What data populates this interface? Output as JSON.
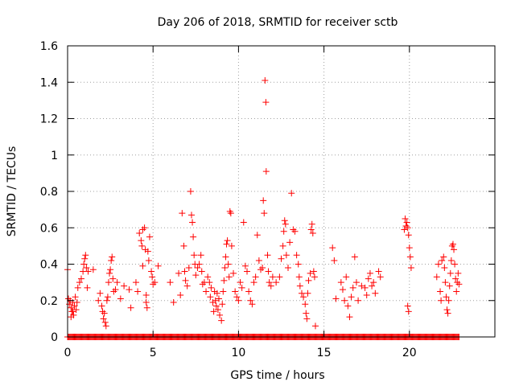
{
  "chart_data": {
    "type": "scatter",
    "title": "Day 206 of 2018, SRMTID for receiver sctb",
    "xlabel": "GPS time / hours",
    "ylabel": "SRMTID / TECUs",
    "xlim": [
      0,
      25
    ],
    "ylim": [
      0,
      1.6
    ],
    "xticks": [
      0,
      5,
      10,
      15,
      20
    ],
    "yticks": [
      0,
      0.2,
      0.4,
      0.6,
      0.8,
      1,
      1.2,
      1.4,
      1.6
    ],
    "ytick_labels": [
      "0",
      "0.2",
      "0.4",
      "0.6",
      "0.8",
      "1",
      "1.2",
      "1.4",
      "1.6"
    ],
    "grid": true,
    "marker": "+",
    "colors": {
      "points": "#ff0000",
      "grid": "#a0a0a0",
      "axes": "#000000"
    },
    "series": [
      {
        "name": "SRMTID",
        "points": [
          [
            0.0,
            0.37
          ],
          [
            0.05,
            0.21
          ],
          [
            0.1,
            0.18
          ],
          [
            0.15,
            0.2
          ],
          [
            0.2,
            0.16
          ],
          [
            0.25,
            0.14
          ],
          [
            0.3,
            0.19
          ],
          [
            0.35,
            0.12
          ],
          [
            0.4,
            0.17
          ],
          [
            0.45,
            0.22
          ],
          [
            0.5,
            0.15
          ],
          [
            0.55,
            0.19
          ],
          [
            0.6,
            0.27
          ],
          [
            0.7,
            0.3
          ],
          [
            0.8,
            0.32
          ],
          [
            0.9,
            0.36
          ],
          [
            0.95,
            0.4
          ],
          [
            1.0,
            0.43
          ],
          [
            1.05,
            0.45
          ],
          [
            1.1,
            0.38
          ],
          [
            1.15,
            0.27
          ],
          [
            1.2,
            0.36
          ],
          [
            1.5,
            0.37
          ],
          [
            0.2,
            0.11
          ],
          [
            0.3,
            0.14
          ],
          [
            1.8,
            0.2
          ],
          [
            1.9,
            0.24
          ],
          [
            2.0,
            0.17
          ],
          [
            2.05,
            0.14
          ],
          [
            2.1,
            0.1
          ],
          [
            2.15,
            0.13
          ],
          [
            2.2,
            0.08
          ],
          [
            2.25,
            0.06
          ],
          [
            2.3,
            0.2
          ],
          [
            2.35,
            0.22
          ],
          [
            2.4,
            0.3
          ],
          [
            2.45,
            0.35
          ],
          [
            2.5,
            0.37
          ],
          [
            2.55,
            0.42
          ],
          [
            2.6,
            0.44
          ],
          [
            2.65,
            0.32
          ],
          [
            2.7,
            0.25
          ],
          [
            2.8,
            0.26
          ],
          [
            2.9,
            0.3
          ],
          [
            3.3,
            0.28
          ],
          [
            3.1,
            0.21
          ],
          [
            3.6,
            0.26
          ],
          [
            3.7,
            0.16
          ],
          [
            4.0,
            0.3
          ],
          [
            4.1,
            0.25
          ],
          [
            4.2,
            0.57
          ],
          [
            4.3,
            0.53
          ],
          [
            4.35,
            0.5
          ],
          [
            4.4,
            0.59
          ],
          [
            4.5,
            0.6
          ],
          [
            4.55,
            0.48
          ],
          [
            4.6,
            0.23
          ],
          [
            4.7,
            0.47
          ],
          [
            4.75,
            0.42
          ],
          [
            4.6,
            0.19
          ],
          [
            4.65,
            0.16
          ],
          [
            4.8,
            0.55
          ],
          [
            4.9,
            0.36
          ],
          [
            4.95,
            0.33
          ],
          [
            5.0,
            0.29
          ],
          [
            5.1,
            0.3
          ],
          [
            4.4,
            0.39
          ],
          [
            5.3,
            0.39
          ],
          [
            6.0,
            0.3
          ],
          [
            6.2,
            0.19
          ],
          [
            6.5,
            0.35
          ],
          [
            6.6,
            0.23
          ],
          [
            6.7,
            0.68
          ],
          [
            6.8,
            0.5
          ],
          [
            6.85,
            0.36
          ],
          [
            6.9,
            0.31
          ],
          [
            7.0,
            0.28
          ],
          [
            7.1,
            0.38
          ],
          [
            7.2,
            0.8
          ],
          [
            7.25,
            0.67
          ],
          [
            7.3,
            0.63
          ],
          [
            7.35,
            0.55
          ],
          [
            7.4,
            0.45
          ],
          [
            7.45,
            0.4
          ],
          [
            7.5,
            0.34
          ],
          [
            7.6,
            0.38
          ],
          [
            7.7,
            0.4
          ],
          [
            7.8,
            0.45
          ],
          [
            7.85,
            0.36
          ],
          [
            7.9,
            0.29
          ],
          [
            8.0,
            0.3
          ],
          [
            8.1,
            0.25
          ],
          [
            8.2,
            0.33
          ],
          [
            8.3,
            0.3
          ],
          [
            8.35,
            0.22
          ],
          [
            8.4,
            0.27
          ],
          [
            8.5,
            0.19
          ],
          [
            8.55,
            0.14
          ],
          [
            8.6,
            0.25
          ],
          [
            8.65,
            0.2
          ],
          [
            8.7,
            0.17
          ],
          [
            8.75,
            0.24
          ],
          [
            8.8,
            0.15
          ],
          [
            8.85,
            0.21
          ],
          [
            8.9,
            0.12
          ],
          [
            9.0,
            0.09
          ],
          [
            9.05,
            0.18
          ],
          [
            9.1,
            0.25
          ],
          [
            9.15,
            0.31
          ],
          [
            9.2,
            0.38
          ],
          [
            9.25,
            0.44
          ],
          [
            9.3,
            0.51
          ],
          [
            9.35,
            0.53
          ],
          [
            9.4,
            0.4
          ],
          [
            9.45,
            0.33
          ],
          [
            9.5,
            0.69
          ],
          [
            9.55,
            0.68
          ],
          [
            9.6,
            0.5
          ],
          [
            9.7,
            0.35
          ],
          [
            9.8,
            0.25
          ],
          [
            9.9,
            0.22
          ],
          [
            10.0,
            0.2
          ],
          [
            10.1,
            0.3
          ],
          [
            10.2,
            0.27
          ],
          [
            10.3,
            0.63
          ],
          [
            10.4,
            0.39
          ],
          [
            10.5,
            0.36
          ],
          [
            10.6,
            0.25
          ],
          [
            10.7,
            0.2
          ],
          [
            10.8,
            0.18
          ],
          [
            10.9,
            0.3
          ],
          [
            11.0,
            0.33
          ],
          [
            11.1,
            0.56
          ],
          [
            11.2,
            0.42
          ],
          [
            11.3,
            0.37
          ],
          [
            11.4,
            0.38
          ],
          [
            11.45,
            0.75
          ],
          [
            11.5,
            0.68
          ],
          [
            11.55,
            1.41
          ],
          [
            11.6,
            1.29
          ],
          [
            11.62,
            0.91
          ],
          [
            11.7,
            0.45
          ],
          [
            11.75,
            0.36
          ],
          [
            11.8,
            0.3
          ],
          [
            11.9,
            0.28
          ],
          [
            12.0,
            0.33
          ],
          [
            12.2,
            0.3
          ],
          [
            12.4,
            0.33
          ],
          [
            12.5,
            0.43
          ],
          [
            12.6,
            0.5
          ],
          [
            12.65,
            0.58
          ],
          [
            12.7,
            0.64
          ],
          [
            12.75,
            0.62
          ],
          [
            12.8,
            0.45
          ],
          [
            12.9,
            0.38
          ],
          [
            13.0,
            0.52
          ],
          [
            13.1,
            0.79
          ],
          [
            13.2,
            0.59
          ],
          [
            13.3,
            0.58
          ],
          [
            13.4,
            0.45
          ],
          [
            13.5,
            0.4
          ],
          [
            13.55,
            0.33
          ],
          [
            13.6,
            0.28
          ],
          [
            13.7,
            0.24
          ],
          [
            13.8,
            0.22
          ],
          [
            13.9,
            0.18
          ],
          [
            13.95,
            0.13
          ],
          [
            14.0,
            0.1
          ],
          [
            14.05,
            0.24
          ],
          [
            14.1,
            0.31
          ],
          [
            14.2,
            0.35
          ],
          [
            14.25,
            0.59
          ],
          [
            14.3,
            0.62
          ],
          [
            14.35,
            0.57
          ],
          [
            14.4,
            0.36
          ],
          [
            14.45,
            0.33
          ],
          [
            14.5,
            0.06
          ],
          [
            15.5,
            0.49
          ],
          [
            15.6,
            0.42
          ],
          [
            15.7,
            0.21
          ],
          [
            16.0,
            0.3
          ],
          [
            16.1,
            0.26
          ],
          [
            16.2,
            0.2
          ],
          [
            16.3,
            0.33
          ],
          [
            16.4,
            0.17
          ],
          [
            16.5,
            0.11
          ],
          [
            16.6,
            0.22
          ],
          [
            16.7,
            0.27
          ],
          [
            16.8,
            0.44
          ],
          [
            16.9,
            0.3
          ],
          [
            17.0,
            0.2
          ],
          [
            17.2,
            0.28
          ],
          [
            17.4,
            0.27
          ],
          [
            17.5,
            0.23
          ],
          [
            17.6,
            0.32
          ],
          [
            17.7,
            0.35
          ],
          [
            17.8,
            0.28
          ],
          [
            17.9,
            0.3
          ],
          [
            18.0,
            0.24
          ],
          [
            18.2,
            0.36
          ],
          [
            18.3,
            0.33
          ],
          [
            19.7,
            0.59
          ],
          [
            19.75,
            0.65
          ],
          [
            19.8,
            0.61
          ],
          [
            19.85,
            0.63
          ],
          [
            19.9,
            0.6
          ],
          [
            19.95,
            0.56
          ],
          [
            20.0,
            0.49
          ],
          [
            20.05,
            0.44
          ],
          [
            20.1,
            0.38
          ],
          [
            19.9,
            0.17
          ],
          [
            19.95,
            0.14
          ],
          [
            21.6,
            0.33
          ],
          [
            21.7,
            0.4
          ],
          [
            21.8,
            0.25
          ],
          [
            21.85,
            0.2
          ],
          [
            21.9,
            0.42
          ],
          [
            22.0,
            0.44
          ],
          [
            22.05,
            0.38
          ],
          [
            22.1,
            0.3
          ],
          [
            22.15,
            0.22
          ],
          [
            22.2,
            0.15
          ],
          [
            22.25,
            0.13
          ],
          [
            22.3,
            0.2
          ],
          [
            22.35,
            0.28
          ],
          [
            22.4,
            0.35
          ],
          [
            22.45,
            0.42
          ],
          [
            22.5,
            0.5
          ],
          [
            22.55,
            0.51
          ],
          [
            22.6,
            0.48
          ],
          [
            22.65,
            0.4
          ],
          [
            22.7,
            0.32
          ],
          [
            22.75,
            0.25
          ],
          [
            22.8,
            0.3
          ],
          [
            22.85,
            0.35
          ],
          [
            22.9,
            0.29
          ]
        ]
      }
    ],
    "zero_band": {
      "x_start": 0.0,
      "x_end": 22.9,
      "step": 0.05,
      "y": 0
    }
  }
}
